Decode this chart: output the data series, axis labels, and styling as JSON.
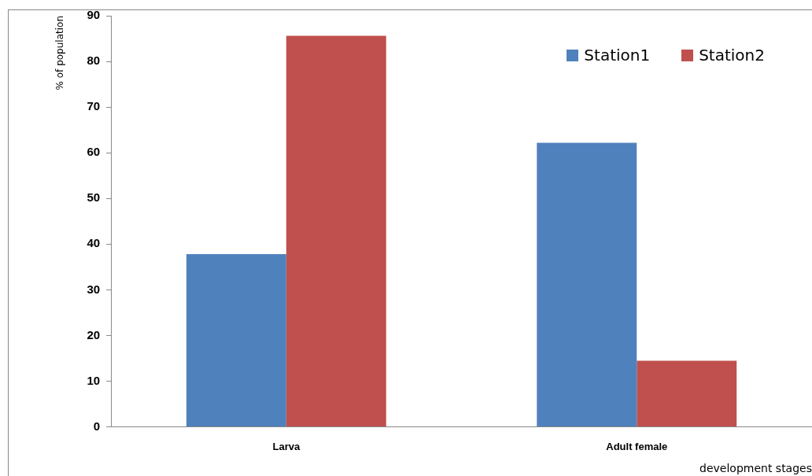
{
  "chart_data": {
    "type": "bar",
    "xlabel": "development stages",
    "ylabel": "% of population",
    "categories": [
      "Larva",
      "Adult female"
    ],
    "series": [
      {
        "name": "Station1",
        "color": "#4f81bd",
        "values": [
          37.8,
          62.2
        ]
      },
      {
        "name": "Station2",
        "color": "#c0504d",
        "values": [
          85.6,
          14.5
        ]
      }
    ],
    "ylim": [
      0,
      90
    ],
    "yticks": [
      0,
      10,
      20,
      30,
      40,
      50,
      60,
      70,
      80,
      90
    ],
    "grid": false,
    "legend": "top right"
  }
}
